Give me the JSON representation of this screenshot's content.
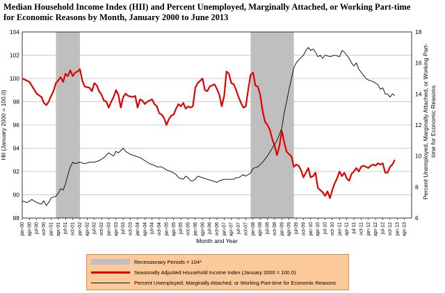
{
  "chart_data": {
    "type": "line",
    "title": "Median Household Income Index (HII) and Percent Unemployed, Marginally Attached, or Working Part-time for Economic Reasons by Month, January 2000 to June 2013",
    "xlabel": "Month and Year",
    "ylabel": "HII (January 2000 = 100.0)",
    "y2label": "Percent Unemployed, Marginally Attached, or Working Part-time for Economic Reasons",
    "ylim": [
      88,
      104
    ],
    "y2lim": [
      6,
      18
    ],
    "yticks": [
      "88",
      "90",
      "92",
      "94",
      "96",
      "98",
      "100",
      "102",
      "104"
    ],
    "y2ticks": [
      "6",
      "8",
      "10",
      "12",
      "14",
      "16",
      "18"
    ],
    "xticks": [
      "jan-00",
      "apr-00",
      "jul-00",
      "oct-00",
      "jan-01",
      "apr-01",
      "jul-01",
      "oct-01",
      "jan-02",
      "apr-02",
      "jul-02",
      "oct-02",
      "jan-03",
      "apr-03",
      "jul-03",
      "oct-03",
      "jan-04",
      "apr-04",
      "jul-04",
      "oct-04",
      "jan-05",
      "apr-05",
      "jul-05",
      "oct-05",
      "jan-06",
      "apr-06",
      "jul-06",
      "oct-06",
      "jan-07",
      "apr-07",
      "jul-07",
      "oct-07",
      "jan-08",
      "apr-08",
      "jul-08",
      "oct-08",
      "jan-09",
      "apr-09",
      "jul-09",
      "oct-09",
      "jan-10",
      "apr-10",
      "jul-10",
      "oct-10",
      "jan-11",
      "apr-11",
      "jul-11",
      "oct-11",
      "jan-12",
      "apr-12",
      "jul-12",
      "oct-12",
      "jan-13",
      "apr-13"
    ],
    "recessions": [
      {
        "start_month": 14,
        "end_month": 24
      },
      {
        "start_month": 95,
        "end_month": 113
      }
    ],
    "series": [
      {
        "name": "Seasonally Adjusted Household Income Index (January 2000 = 100.0)",
        "color": "#e00000",
        "axis": "left",
        "anchors": [
          [
            0,
            100.0
          ],
          [
            3,
            99.7
          ],
          [
            6,
            98.7
          ],
          [
            8,
            98.4
          ],
          [
            9,
            97.9
          ],
          [
            10,
            97.7
          ],
          [
            11,
            98.0
          ],
          [
            12,
            98.5
          ],
          [
            13,
            98.9
          ],
          [
            14,
            99.6
          ],
          [
            16,
            100.1
          ],
          [
            17,
            99.7
          ],
          [
            18,
            100.4
          ],
          [
            19,
            100.2
          ],
          [
            20,
            100.7
          ],
          [
            21,
            100.2
          ],
          [
            22,
            100.5
          ],
          [
            23,
            100.6
          ],
          [
            24,
            100.8
          ],
          [
            25,
            99.8
          ],
          [
            26,
            99.3
          ],
          [
            28,
            99.2
          ],
          [
            29,
            98.9
          ],
          [
            30,
            99.6
          ],
          [
            31,
            99.4
          ],
          [
            32,
            98.9
          ],
          [
            33,
            98.6
          ],
          [
            34,
            98.1
          ],
          [
            35,
            98.0
          ],
          [
            36,
            97.5
          ],
          [
            37,
            98.0
          ],
          [
            38,
            98.4
          ],
          [
            39,
            99.0
          ],
          [
            40,
            98.6
          ],
          [
            41,
            97.5
          ],
          [
            42,
            98.4
          ],
          [
            43,
            98.7
          ],
          [
            44,
            98.5
          ],
          [
            46,
            98.4
          ],
          [
            47,
            98.5
          ],
          [
            48,
            97.5
          ],
          [
            49,
            98.2
          ],
          [
            50,
            98.1
          ],
          [
            51,
            97.8
          ],
          [
            52,
            98.0
          ],
          [
            53,
            98.1
          ],
          [
            54,
            98.2
          ],
          [
            55,
            97.8
          ],
          [
            56,
            97.6
          ],
          [
            57,
            97.0
          ],
          [
            58,
            96.9
          ],
          [
            59,
            96.6
          ],
          [
            60,
            96.0
          ],
          [
            61,
            96.5
          ],
          [
            62,
            96.8
          ],
          [
            63,
            96.9
          ],
          [
            64,
            97.4
          ],
          [
            65,
            97.8
          ],
          [
            66,
            97.6
          ],
          [
            67,
            97.9
          ],
          [
            68,
            97.4
          ],
          [
            69,
            97.6
          ],
          [
            70,
            97.5
          ],
          [
            71,
            97.6
          ],
          [
            72,
            99.2
          ],
          [
            73,
            99.6
          ],
          [
            74,
            99.8
          ],
          [
            75,
            100.0
          ],
          [
            76,
            99.0
          ],
          [
            77,
            98.9
          ],
          [
            78,
            99.3
          ],
          [
            79,
            99.4
          ],
          [
            80,
            99.5
          ],
          [
            81,
            99.1
          ],
          [
            82,
            98.6
          ],
          [
            83,
            97.6
          ],
          [
            84,
            98.5
          ],
          [
            85,
            100.6
          ],
          [
            86,
            100.4
          ],
          [
            87,
            99.6
          ],
          [
            88,
            99.5
          ],
          [
            89,
            99.0
          ],
          [
            90,
            98.4
          ],
          [
            91,
            97.9
          ],
          [
            92,
            97.5
          ],
          [
            93,
            97.6
          ],
          [
            94,
            99.0
          ],
          [
            95,
            100.3
          ],
          [
            96,
            100.5
          ],
          [
            97,
            99.4
          ],
          [
            98,
            99.3
          ],
          [
            99,
            98.6
          ],
          [
            100,
            97.2
          ],
          [
            101,
            96.3
          ],
          [
            102,
            96.0
          ],
          [
            103,
            95.6
          ],
          [
            104,
            94.8
          ],
          [
            105,
            94.2
          ],
          [
            106,
            93.4
          ],
          [
            107,
            94.2
          ],
          [
            108,
            95.5
          ],
          [
            109,
            94.5
          ],
          [
            110,
            93.7
          ],
          [
            111,
            93.5
          ],
          [
            112,
            93.3
          ],
          [
            113,
            92.4
          ],
          [
            114,
            92.6
          ],
          [
            115,
            92.5
          ],
          [
            116,
            92.1
          ],
          [
            117,
            91.5
          ],
          [
            118,
            91.9
          ],
          [
            119,
            92.3
          ],
          [
            120,
            91.5
          ],
          [
            121,
            91.6
          ],
          [
            122,
            91.9
          ],
          [
            123,
            90.6
          ],
          [
            124,
            90.4
          ],
          [
            125,
            90.2
          ],
          [
            126,
            89.9
          ],
          [
            127,
            90.3
          ],
          [
            128,
            89.7
          ],
          [
            129,
            90.4
          ],
          [
            130,
            91.0
          ],
          [
            131,
            91.4
          ],
          [
            132,
            92.0
          ],
          [
            133,
            91.6
          ],
          [
            134,
            91.9
          ],
          [
            135,
            91.4
          ],
          [
            136,
            91.2
          ],
          [
            137,
            91.8
          ],
          [
            138,
            92.0
          ],
          [
            139,
            92.3
          ],
          [
            140,
            92.0
          ],
          [
            141,
            92.4
          ],
          [
            142,
            92.5
          ],
          [
            143,
            92.4
          ],
          [
            144,
            92.3
          ],
          [
            145,
            92.5
          ],
          [
            146,
            92.6
          ],
          [
            147,
            92.5
          ],
          [
            148,
            92.7
          ],
          [
            149,
            92.6
          ],
          [
            150,
            92.7
          ],
          [
            151,
            91.9
          ],
          [
            152,
            91.9
          ],
          [
            153,
            92.4
          ],
          [
            154,
            92.6
          ],
          [
            155,
            93.0
          ]
        ]
      },
      {
        "name": "Percent Unemployed, Marginally Attached, or Working Part-time for Economic Reasons",
        "color": "#000000",
        "axis": "right",
        "anchors": [
          [
            0,
            7.1
          ],
          [
            2,
            7.0
          ],
          [
            4,
            7.2
          ],
          [
            6,
            7.0
          ],
          [
            8,
            6.9
          ],
          [
            9,
            7.1
          ],
          [
            10,
            6.8
          ],
          [
            11,
            7.0
          ],
          [
            12,
            7.3
          ],
          [
            14,
            7.4
          ],
          [
            15,
            7.6
          ],
          [
            16,
            7.9
          ],
          [
            17,
            7.8
          ],
          [
            18,
            8.2
          ],
          [
            19,
            8.8
          ],
          [
            20,
            9.3
          ],
          [
            21,
            9.6
          ],
          [
            22,
            9.5
          ],
          [
            24,
            9.6
          ],
          [
            26,
            9.5
          ],
          [
            28,
            9.6
          ],
          [
            30,
            9.6
          ],
          [
            32,
            9.7
          ],
          [
            34,
            9.9
          ],
          [
            36,
            10.2
          ],
          [
            38,
            10.0
          ],
          [
            39,
            10.3
          ],
          [
            40,
            10.2
          ],
          [
            42,
            10.5
          ],
          [
            43,
            10.3
          ],
          [
            45,
            10.1
          ],
          [
            47,
            10.0
          ],
          [
            49,
            9.9
          ],
          [
            51,
            9.7
          ],
          [
            53,
            9.5
          ],
          [
            55,
            9.4
          ],
          [
            56,
            9.3
          ],
          [
            58,
            9.3
          ],
          [
            60,
            9.1
          ],
          [
            62,
            9.0
          ],
          [
            64,
            8.8
          ],
          [
            65,
            8.6
          ],
          [
            67,
            8.5
          ],
          [
            68,
            8.7
          ],
          [
            69,
            8.6
          ],
          [
            70,
            8.4
          ],
          [
            71,
            8.4
          ],
          [
            72,
            8.5
          ],
          [
            73,
            8.7
          ],
          [
            75,
            8.6
          ],
          [
            77,
            8.5
          ],
          [
            79,
            8.4
          ],
          [
            81,
            8.3
          ],
          [
            82,
            8.4
          ],
          [
            84,
            8.5
          ],
          [
            86,
            8.5
          ],
          [
            88,
            8.5
          ],
          [
            89,
            8.6
          ],
          [
            90,
            8.6
          ],
          [
            92,
            8.8
          ],
          [
            93,
            8.7
          ],
          [
            94,
            8.8
          ],
          [
            95,
            8.9
          ],
          [
            96,
            9.2
          ],
          [
            98,
            9.3
          ],
          [
            100,
            9.6
          ],
          [
            102,
            10.0
          ],
          [
            104,
            10.5
          ],
          [
            106,
            11.0
          ],
          [
            108,
            11.8
          ],
          [
            109,
            12.8
          ],
          [
            110,
            13.5
          ],
          [
            111,
            14.3
          ],
          [
            112,
            15.0
          ],
          [
            113,
            15.7
          ],
          [
            114,
            16.0
          ],
          [
            115,
            16.2
          ],
          [
            117,
            16.5
          ],
          [
            118,
            16.8
          ],
          [
            119,
            17.0
          ],
          [
            120,
            16.8
          ],
          [
            121,
            16.9
          ],
          [
            122,
            16.7
          ],
          [
            123,
            16.4
          ],
          [
            124,
            16.5
          ],
          [
            125,
            16.3
          ],
          [
            126,
            16.5
          ],
          [
            128,
            16.4
          ],
          [
            130,
            16.5
          ],
          [
            132,
            16.4
          ],
          [
            133,
            16.8
          ],
          [
            134,
            16.7
          ],
          [
            135,
            16.5
          ],
          [
            136,
            16.3
          ],
          [
            137,
            16.0
          ],
          [
            138,
            15.8
          ],
          [
            139,
            16.0
          ],
          [
            140,
            15.6
          ],
          [
            141,
            15.4
          ],
          [
            142,
            15.2
          ],
          [
            143,
            15.0
          ],
          [
            144,
            14.9
          ],
          [
            146,
            14.8
          ],
          [
            147,
            14.7
          ],
          [
            148,
            14.6
          ],
          [
            149,
            14.3
          ],
          [
            150,
            14.4
          ],
          [
            151,
            14.0
          ],
          [
            152,
            14.0
          ],
          [
            153,
            13.8
          ],
          [
            154,
            14.0
          ],
          [
            155,
            13.9
          ]
        ]
      }
    ]
  },
  "legend": {
    "items": [
      {
        "label": "Recessionary Periods = 104*"
      },
      {
        "label": "Seasonally Adjusted Household Income Index (January 2000 = 100.0)"
      },
      {
        "label": "Percent Unemployed,  Marginally Attached, or Working Part-time for Economic Reasons"
      }
    ]
  },
  "colors": {
    "recession_fill": "#bfbfbf",
    "hii_line": "#e00000",
    "unemp_line": "#000000",
    "legend_bg": "#fbc99a",
    "legend_border": "#d28c4c",
    "gridline": "#9a9a9a"
  }
}
